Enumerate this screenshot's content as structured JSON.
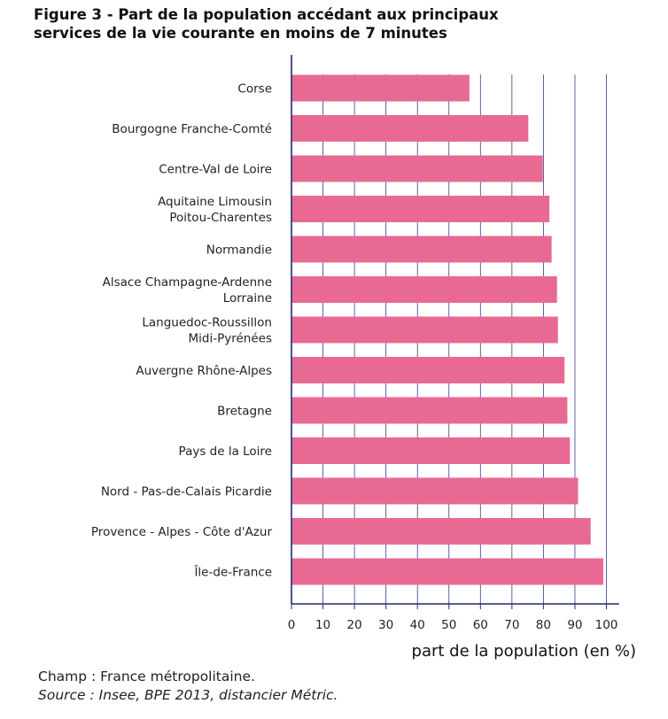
{
  "title": {
    "line1": "Figure 3 - Part de la population accédant aux principaux",
    "line2": "services de la vie courante en moins de 7 minutes"
  },
  "colors": {
    "bar": "#e86a93",
    "axis": "#1f2a7a",
    "grid": "#3a3a8a"
  },
  "chart_data": {
    "type": "bar",
    "orientation": "horizontal",
    "title": "Figure 3 - Part de la population accédant aux principaux services de la vie courante en moins de 7 minutes",
    "xlabel": "part de la population (en %)",
    "ylabel": "",
    "xlim": [
      0,
      104
    ],
    "xticks": [
      0,
      10,
      20,
      30,
      40,
      50,
      60,
      70,
      80,
      90,
      100
    ],
    "grid": true,
    "categories": [
      [
        "Corse"
      ],
      [
        "Bourgogne Franche-Comté"
      ],
      [
        "Centre-Val de Loire"
      ],
      [
        "Aquitaine Limousin",
        "Poitou-Charentes"
      ],
      [
        "Normandie"
      ],
      [
        "Alsace Champagne-Ardenne",
        "Lorraine"
      ],
      [
        "Languedoc-Roussillon",
        "Midi-Pyrénées"
      ],
      [
        "Auvergne Rhône-Alpes"
      ],
      [
        "Bretagne"
      ],
      [
        "Pays de la Loire"
      ],
      [
        "Nord - Pas-de-Calais Picardie"
      ],
      [
        "Provence - Alpes - Côte d'Azur"
      ],
      [
        "Île-de-France"
      ]
    ],
    "values": [
      56.5,
      75.2,
      79.8,
      81.9,
      82.6,
      84.3,
      84.6,
      86.7,
      87.6,
      88.4,
      91.0,
      95.0,
      99.0
    ]
  },
  "footer": {
    "champ": "Champ : France métropolitaine.",
    "source": "Source : Insee, BPE 2013, distancier Métric."
  }
}
